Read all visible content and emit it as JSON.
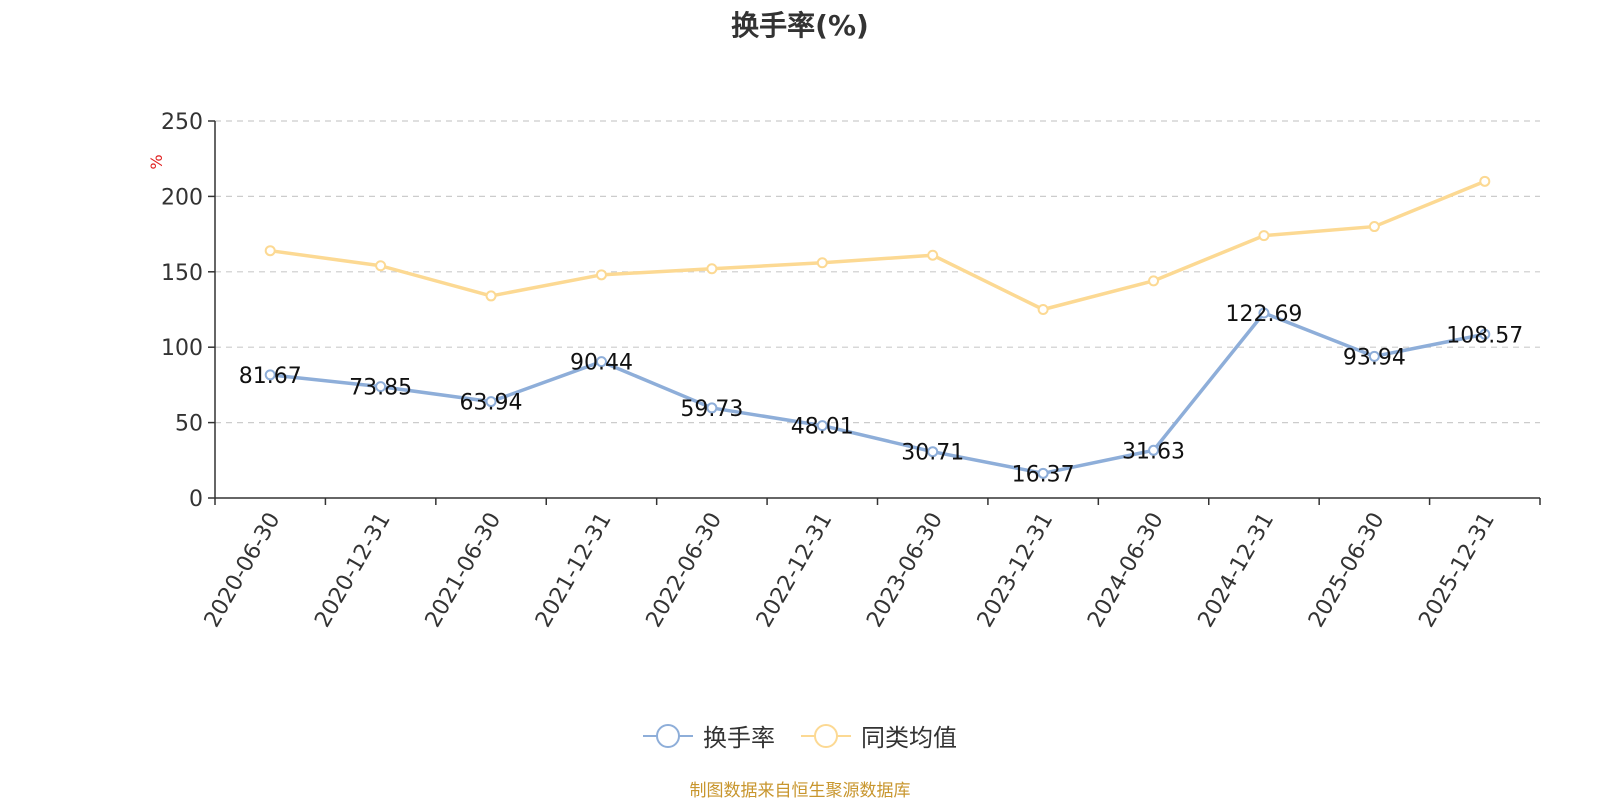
{
  "chart_data": {
    "type": "line",
    "title": "换手率(%)",
    "ylabel": "%",
    "xlabel": "",
    "ylim": [
      0,
      250
    ],
    "yticks": [
      0,
      50,
      100,
      150,
      200,
      250
    ],
    "grid": true,
    "legend_position": "bottom",
    "categories": [
      "2020-06-30",
      "2020-12-31",
      "2021-06-30",
      "2021-12-31",
      "2022-06-30",
      "2022-12-31",
      "2023-06-30",
      "2023-12-31",
      "2024-06-30",
      "2024-12-31",
      "2025-06-30",
      "2025-12-31"
    ],
    "series": [
      {
        "name": "换手率",
        "color": "#8eaed9",
        "show_labels": true,
        "values": [
          81.67,
          73.85,
          63.94,
          90.44,
          59.73,
          48.01,
          30.71,
          16.37,
          31.63,
          122.69,
          93.94,
          108.57
        ],
        "labels": [
          "81.67",
          "73.85",
          "63.94",
          "90.44",
          "59.73",
          "48.01",
          "30.71",
          "16.37",
          "31.63",
          "122.69",
          "93.94",
          "108.57"
        ]
      },
      {
        "name": "同类均值",
        "color": "#fcd993",
        "show_labels": false,
        "values": [
          164,
          154,
          134,
          148,
          152,
          156,
          161,
          125,
          144,
          174,
          180,
          210
        ]
      }
    ]
  },
  "footer": {
    "source": "制图数据来自恒生聚源数据库",
    "source_color": "#c8962e"
  },
  "colors": {
    "axis": "#333333",
    "grid": "#cccccc",
    "ylabel": "#e02020"
  }
}
